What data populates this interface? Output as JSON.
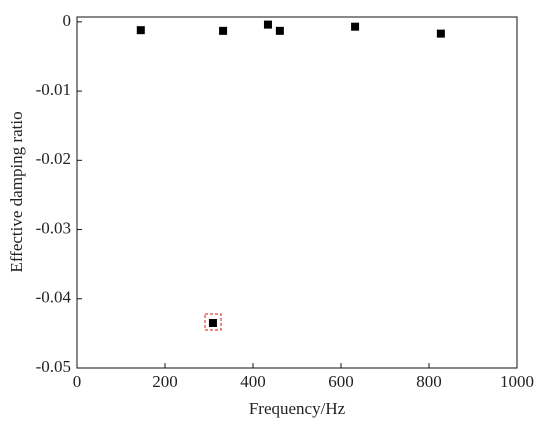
{
  "chart_data": {
    "type": "scatter",
    "x_label": "Frequency/Hz",
    "y_label": "Effective damping ratio",
    "x": [
      145,
      332,
      434,
      461,
      632,
      827,
      309
    ],
    "series": [
      {
        "color": "#000000",
        "values": [
          -0.0012,
          -0.0013,
          -0.0004,
          -0.0013,
          -0.0007,
          -0.0017,
          -0.0435
        ]
      }
    ],
    "xlim": [
      0,
      1000
    ],
    "xticks": [
      0,
      200,
      400,
      600,
      800,
      1000
    ],
    "ylim": [
      -0.05,
      0.0007
    ],
    "yticks": [
      -0.05,
      -0.04,
      -0.03,
      -0.02,
      -0.01,
      0
    ],
    "grid": false
  }
}
